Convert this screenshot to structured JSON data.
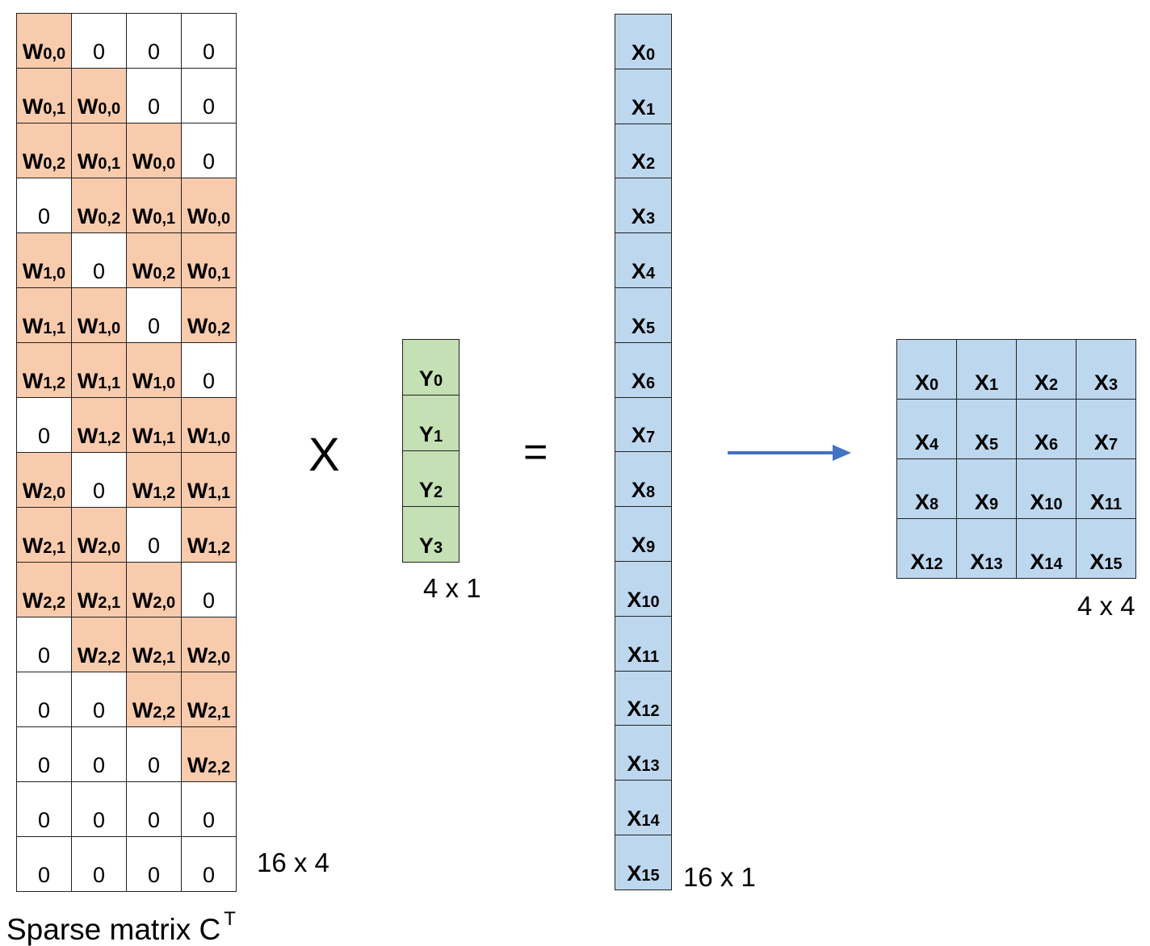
{
  "colors": {
    "weight_cell": "#f8cbad",
    "zero_cell": "#ffffff",
    "input_cell": "#c5e0b4",
    "output_cell": "#bdd7ee",
    "arrow": "#4472c4"
  },
  "sparse_matrix": {
    "label": "Sparse matrix C",
    "label_superscript": "T",
    "size": "16 x 4",
    "rows": [
      [
        "W0,0",
        "0",
        "0",
        "0"
      ],
      [
        "W0,1",
        "W0,0",
        "0",
        "0"
      ],
      [
        "W0,2",
        "W0,1",
        "W0,0",
        "0"
      ],
      [
        "0",
        "W0,2",
        "W0,1",
        "W0,0"
      ],
      [
        "W1,0",
        "0",
        "W0,2",
        "W0,1"
      ],
      [
        "W1,1",
        "W1,0",
        "0",
        "W0,2"
      ],
      [
        "W1,2",
        "W1,1",
        "W1,0",
        "0"
      ],
      [
        "0",
        "W1,2",
        "W1,1",
        "W1,0"
      ],
      [
        "W2,0",
        "0",
        "W1,2",
        "W1,1"
      ],
      [
        "W2,1",
        "W2,0",
        "0",
        "W1,2"
      ],
      [
        "W2,2",
        "W2,1",
        "W2,0",
        "0"
      ],
      [
        "0",
        "W2,2",
        "W2,1",
        "W2,0"
      ],
      [
        "0",
        "0",
        "W2,2",
        "W2,1"
      ],
      [
        "0",
        "0",
        "0",
        "W2,2"
      ],
      [
        "0",
        "0",
        "0",
        "0"
      ],
      [
        "0",
        "0",
        "0",
        "0"
      ]
    ]
  },
  "multiply_symbol": "X",
  "input_vector": {
    "size": "4 x 1",
    "items": [
      "Y0",
      "Y1",
      "Y2",
      "Y3"
    ]
  },
  "equals_symbol": "=",
  "output_vector": {
    "size": "16 x 1",
    "items": [
      "X0",
      "X1",
      "X2",
      "X3",
      "X4",
      "X5",
      "X6",
      "X7",
      "X8",
      "X9",
      "X10",
      "X11",
      "X12",
      "X13",
      "X14",
      "X15"
    ]
  },
  "output_grid": {
    "size": "4 x 4",
    "rows": [
      [
        "X0",
        "X1",
        "X2",
        "X3"
      ],
      [
        "X4",
        "X5",
        "X6",
        "X7"
      ],
      [
        "X8",
        "X9",
        "X10",
        "X11"
      ],
      [
        "X12",
        "X13",
        "X14",
        "X15"
      ]
    ]
  }
}
